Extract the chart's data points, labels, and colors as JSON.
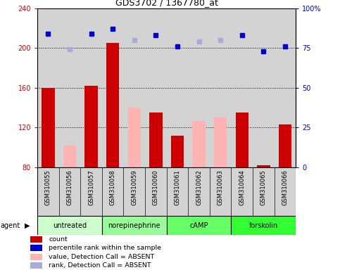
{
  "title": "GDS3702 / 1367780_at",
  "samples": [
    "GSM310055",
    "GSM310056",
    "GSM310057",
    "GSM310058",
    "GSM310059",
    "GSM310060",
    "GSM310061",
    "GSM310062",
    "GSM310063",
    "GSM310064",
    "GSM310065",
    "GSM310066"
  ],
  "groups": [
    {
      "label": "untreated",
      "color": "#ccffcc",
      "indices": [
        0,
        1,
        2
      ]
    },
    {
      "label": "norepinephrine",
      "color": "#99ff99",
      "indices": [
        3,
        4,
        5
      ]
    },
    {
      "label": "cAMP",
      "color": "#66ff66",
      "indices": [
        6,
        7,
        8
      ]
    },
    {
      "label": "forskolin",
      "color": "#33ff33",
      "indices": [
        9,
        10,
        11
      ]
    }
  ],
  "count_values": [
    160,
    null,
    162,
    205,
    null,
    135,
    112,
    null,
    null,
    135,
    82,
    123
  ],
  "absent_values": [
    null,
    102,
    null,
    null,
    140,
    null,
    null,
    127,
    130,
    null,
    null,
    null
  ],
  "percentile_rank": [
    84,
    null,
    84,
    87,
    null,
    83,
    76,
    null,
    null,
    83,
    73,
    76
  ],
  "absent_rank": [
    null,
    74,
    null,
    null,
    80,
    null,
    null,
    79,
    80,
    null,
    null,
    null
  ],
  "ylim_left": [
    80,
    240
  ],
  "ylim_right": [
    0,
    100
  ],
  "yticks_left": [
    80,
    120,
    160,
    200,
    240
  ],
  "ytick_labels_left": [
    "80",
    "120",
    "160",
    "200",
    "240"
  ],
  "yticks_right": [
    0,
    25,
    50,
    75,
    100
  ],
  "ytick_labels_right": [
    "0",
    "25",
    "50",
    "75",
    "100%"
  ],
  "count_color": "#cc0000",
  "absent_bar_color": "#ffb3b3",
  "percentile_color": "#0000cc",
  "absent_rank_color": "#aaaadd",
  "bg_color": "#d3d3d3",
  "agent_label": "agent",
  "legend_items": [
    {
      "color": "#cc0000",
      "label": "count"
    },
    {
      "color": "#0000cc",
      "label": "percentile rank within the sample"
    },
    {
      "color": "#ffb3b3",
      "label": "value, Detection Call = ABSENT"
    },
    {
      "color": "#aaaadd",
      "label": "rank, Detection Call = ABSENT"
    }
  ]
}
